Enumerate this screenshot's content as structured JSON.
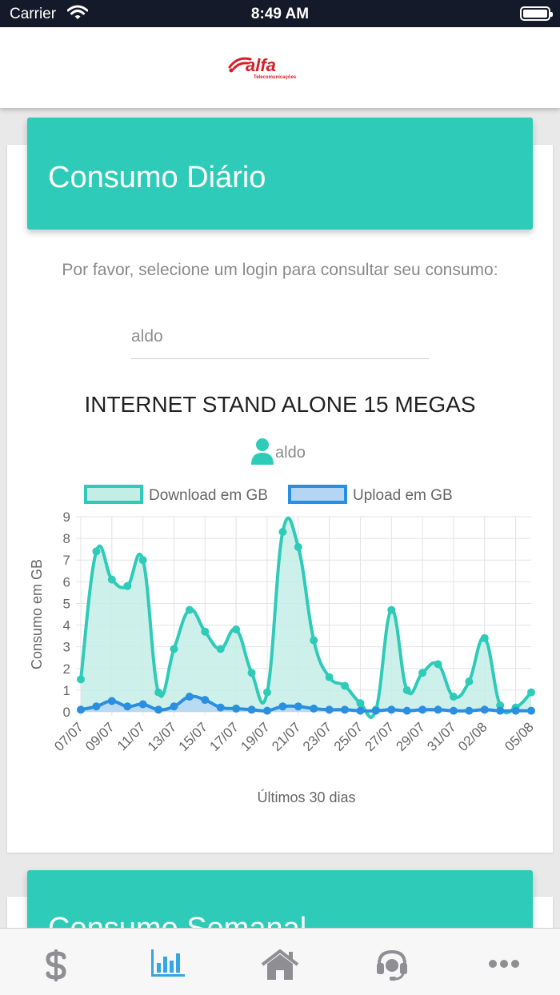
{
  "status_bar": {
    "carrier": "Carrier",
    "time": "8:49 AM"
  },
  "header": {
    "logo_text": "alfa",
    "logo_subtext": "Telecomunicações"
  },
  "daily_card": {
    "title": "Consumo Diário",
    "prompt": "Por favor, selecione um login para consultar seu consumo:",
    "login_value": "aldo",
    "plan_title": "INTERNET STAND ALONE 15 MEGAS",
    "user_label": "aldo"
  },
  "weekly_card": {
    "title": "Consumo Semanal"
  },
  "chart_data": {
    "type": "line",
    "title": "",
    "xlabel": "Últimos 30 dias",
    "ylabel": "Consumo em GB",
    "ylim": [
      0,
      9
    ],
    "yticks": [
      0,
      1,
      2,
      3,
      4,
      5,
      6,
      7,
      8,
      9
    ],
    "grid": true,
    "legend": "top",
    "x": [
      "07/07",
      "08/07",
      "09/07",
      "10/07",
      "11/07",
      "12/07",
      "13/07",
      "14/07",
      "15/07",
      "16/07",
      "17/07",
      "18/07",
      "19/07",
      "20/07",
      "21/07",
      "22/07",
      "23/07",
      "24/07",
      "25/07",
      "26/07",
      "27/07",
      "28/07",
      "29/07",
      "30/07",
      "31/07",
      "01/08",
      "02/08",
      "03/08",
      "04/08",
      "05/08"
    ],
    "x_tick_labels": [
      "07/07",
      "09/07",
      "11/07",
      "13/07",
      "15/07",
      "17/07",
      "19/07",
      "21/07",
      "23/07",
      "25/07",
      "27/07",
      "29/07",
      "31/07",
      "02/08",
      "05/08"
    ],
    "series": [
      {
        "name": "Download em GB",
        "color": "#2ecbb8",
        "fill": "#c4ede6",
        "values": [
          1.5,
          7.4,
          6.1,
          5.8,
          7.0,
          0.9,
          2.9,
          4.7,
          3.7,
          2.9,
          3.8,
          1.8,
          0.9,
          8.3,
          7.6,
          3.3,
          1.6,
          1.2,
          0.4,
          0.1,
          4.7,
          1.0,
          1.8,
          2.2,
          0.7,
          1.4,
          3.4,
          0.3,
          0.2,
          0.9
        ]
      },
      {
        "name": "Upload em GB",
        "color": "#2a8fe0",
        "fill": "#b4d6f4",
        "values": [
          0.1,
          0.25,
          0.5,
          0.25,
          0.35,
          0.1,
          0.25,
          0.7,
          0.55,
          0.2,
          0.15,
          0.1,
          0.05,
          0.25,
          0.25,
          0.15,
          0.1,
          0.1,
          0.05,
          0.05,
          0.1,
          0.05,
          0.1,
          0.1,
          0.05,
          0.05,
          0.1,
          0.05,
          0.05,
          0.05
        ]
      }
    ]
  },
  "tab_bar": {
    "items": [
      {
        "icon": "dollar-icon",
        "active": false
      },
      {
        "icon": "bar-chart-icon",
        "active": true
      },
      {
        "icon": "home-icon",
        "active": false
      },
      {
        "icon": "headset-icon",
        "active": false
      },
      {
        "icon": "more-icon",
        "active": false
      }
    ],
    "active_color": "#33a6e6",
    "inactive_color": "#8e8e93"
  }
}
